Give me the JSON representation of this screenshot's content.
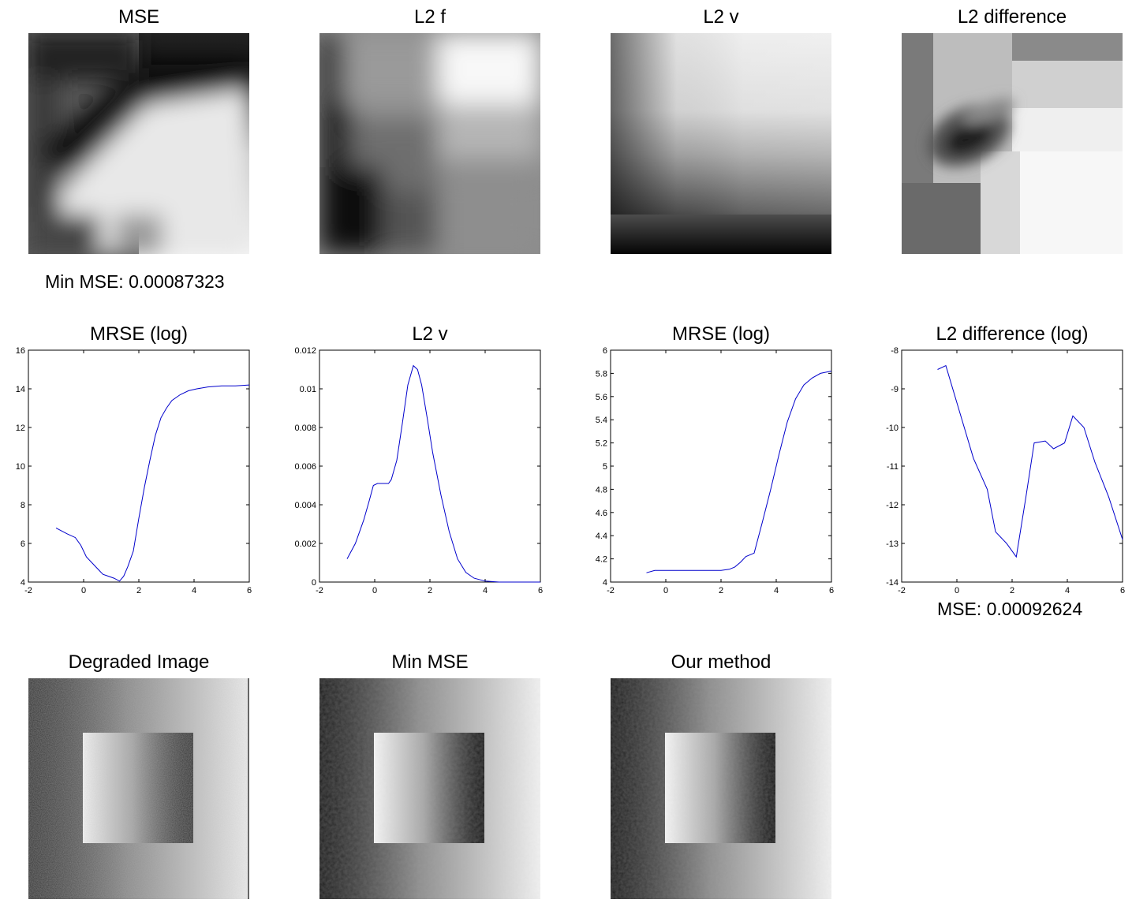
{
  "row1": {
    "titles": [
      "MSE",
      "L2 f",
      "L2 v",
      "L2 difference"
    ],
    "note": "Min MSE: 0.00087323"
  },
  "row3": {
    "titles": [
      "Degraded Image",
      "Min MSE",
      "Our method"
    ]
  },
  "chart_data": [
    {
      "type": "line",
      "title": "MRSE (log)",
      "xlim": [
        -2,
        6
      ],
      "ylim": [
        4,
        16
      ],
      "xticks": [
        -2,
        0,
        2,
        4,
        6
      ],
      "yticks": [
        4,
        6,
        8,
        10,
        12,
        14,
        16
      ],
      "xticklabels": [
        "-2",
        "0",
        "2",
        "4",
        "6"
      ],
      "yticklabels": [
        "4",
        "6",
        "8",
        "10",
        "12",
        "14",
        "16"
      ],
      "color": "#0000cc",
      "x": [
        -1.0,
        -0.6,
        -0.3,
        -0.1,
        0.1,
        0.3,
        0.5,
        0.7,
        0.9,
        1.1,
        1.3,
        1.45,
        1.6,
        1.8,
        2.0,
        2.2,
        2.4,
        2.6,
        2.8,
        3.0,
        3.2,
        3.5,
        3.8,
        4.1,
        4.5,
        5.0,
        5.5,
        6.0
      ],
      "y": [
        6.8,
        6.5,
        6.3,
        5.9,
        5.3,
        5.0,
        4.7,
        4.4,
        4.3,
        4.2,
        4.05,
        4.3,
        4.8,
        5.6,
        7.3,
        8.9,
        10.3,
        11.6,
        12.5,
        13.0,
        13.4,
        13.7,
        13.9,
        14.0,
        14.1,
        14.15,
        14.15,
        14.2
      ]
    },
    {
      "type": "line",
      "title": "L2 v",
      "xlim": [
        -2,
        6
      ],
      "ylim": [
        0,
        0.012
      ],
      "xticks": [
        -2,
        0,
        2,
        4,
        6
      ],
      "yticks": [
        0,
        0.002,
        0.004,
        0.006,
        0.008,
        0.01,
        0.012
      ],
      "xticklabels": [
        "-2",
        "0",
        "2",
        "4",
        "6"
      ],
      "yticklabels": [
        "0",
        "0.002",
        "0.004",
        "0.006",
        "0.008",
        "0.01",
        "0.012"
      ],
      "color": "#0000cc",
      "x": [
        -1.0,
        -0.7,
        -0.4,
        -0.2,
        -0.05,
        0.1,
        0.3,
        0.5,
        0.6,
        0.8,
        1.0,
        1.2,
        1.4,
        1.55,
        1.7,
        1.9,
        2.1,
        2.4,
        2.7,
        3.0,
        3.3,
        3.6,
        4.0,
        4.5,
        5.0,
        5.5,
        6.0
      ],
      "y": [
        0.0012,
        0.002,
        0.0032,
        0.0042,
        0.005,
        0.0051,
        0.0051,
        0.0051,
        0.0053,
        0.0063,
        0.0082,
        0.0102,
        0.0112,
        0.011,
        0.0102,
        0.0085,
        0.0067,
        0.0045,
        0.0026,
        0.0012,
        0.0005,
        0.0002,
        5e-05,
        0.0,
        0.0,
        0.0,
        0.0
      ]
    },
    {
      "type": "line",
      "title": "MRSE (log)",
      "xlim": [
        -2,
        6
      ],
      "ylim": [
        4,
        6
      ],
      "xticks": [
        -2,
        0,
        2,
        4,
        6
      ],
      "yticks": [
        4,
        4.2,
        4.4,
        4.6,
        4.8,
        5,
        5.2,
        5.4,
        5.6,
        5.8,
        6
      ],
      "xticklabels": [
        "-2",
        "0",
        "2",
        "4",
        "6"
      ],
      "yticklabels": [
        "4",
        "4.2",
        "4.4",
        "4.6",
        "4.8",
        "5",
        "5.2",
        "5.4",
        "5.6",
        "5.8",
        "6"
      ],
      "color": "#0000cc",
      "x": [
        -0.7,
        -0.4,
        0.0,
        1.0,
        2.0,
        2.3,
        2.5,
        2.7,
        2.9,
        3.2,
        3.5,
        3.8,
        4.1,
        4.4,
        4.7,
        5.0,
        5.3,
        5.6,
        6.0
      ],
      "y": [
        4.08,
        4.1,
        4.1,
        4.1,
        4.1,
        4.11,
        4.13,
        4.17,
        4.22,
        4.25,
        4.52,
        4.8,
        5.1,
        5.38,
        5.58,
        5.7,
        5.76,
        5.8,
        5.82
      ]
    },
    {
      "type": "line",
      "title": "L2 difference (log)",
      "xlim": [
        -2,
        6
      ],
      "ylim": [
        -14,
        -8
      ],
      "xticks": [
        -2,
        0,
        2,
        4,
        6
      ],
      "yticks": [
        -14,
        -13,
        -12,
        -11,
        -10,
        -9,
        -8
      ],
      "xticklabels": [
        "-2",
        "0",
        "2",
        "4",
        "6"
      ],
      "yticklabels": [
        "-14",
        "-13",
        "-12",
        "-11",
        "-10",
        "-9",
        "-8"
      ],
      "color": "#0000cc",
      "x": [
        -0.7,
        -0.4,
        0.1,
        0.6,
        1.1,
        1.4,
        1.8,
        2.15,
        2.5,
        2.8,
        3.2,
        3.5,
        3.9,
        4.2,
        4.6,
        5.0,
        5.5,
        6.0
      ],
      "y": [
        -8.5,
        -8.4,
        -9.6,
        -10.8,
        -11.6,
        -12.7,
        -13.0,
        -13.35,
        -11.8,
        -10.4,
        -10.35,
        -10.55,
        -10.4,
        -9.7,
        -10.0,
        -10.9,
        -11.8,
        -12.9
      ],
      "note": "MSE: 0.00092624"
    }
  ]
}
